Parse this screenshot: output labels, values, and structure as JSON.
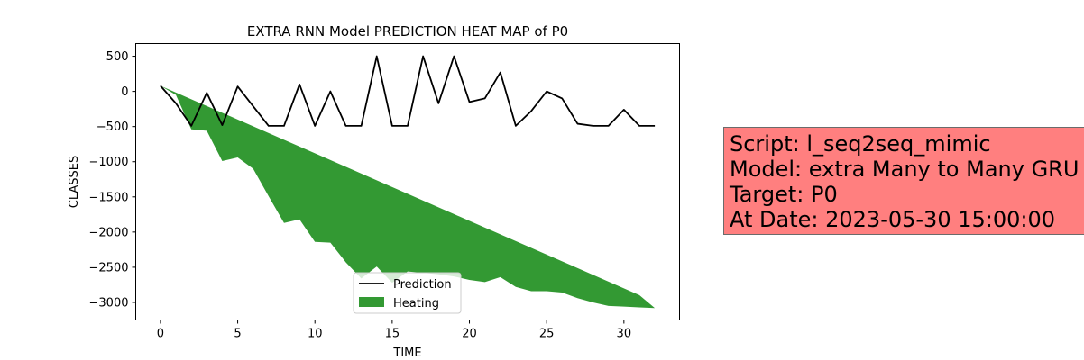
{
  "chart_data": {
    "type": "line",
    "title": "EXTRA RNN Model PREDICTION HEAT MAP of P0",
    "xlabel": "TIME",
    "ylabel": "CLASSES",
    "xlim": [
      -1.6,
      33.6
    ],
    "ylim": [
      -3250,
      680
    ],
    "xticks": [
      0,
      5,
      10,
      15,
      20,
      25,
      30
    ],
    "yticks": [
      500,
      0,
      -500,
      -1000,
      -1500,
      -2000,
      -2500,
      -3000
    ],
    "grid": false,
    "legend_position": "lower center",
    "x": [
      0,
      1,
      2,
      3,
      4,
      5,
      6,
      7,
      8,
      9,
      10,
      11,
      12,
      13,
      14,
      15,
      16,
      17,
      18,
      19,
      20,
      21,
      22,
      23,
      24,
      25,
      26,
      27,
      28,
      29,
      30,
      31,
      32
    ],
    "series": [
      {
        "name": "Prediction",
        "kind": "line",
        "color": "#000000",
        "values": [
          80,
          -170,
          -490,
          -20,
          -480,
          70,
          -210,
          -490,
          -490,
          100,
          -490,
          0,
          -490,
          -490,
          500,
          -490,
          -490,
          500,
          -170,
          500,
          -150,
          -100,
          270,
          -490,
          -280,
          0,
          -100,
          -460,
          -490,
          -490,
          -260,
          -490,
          -490
        ]
      },
      {
        "name": "Heating",
        "kind": "fill_between",
        "color": "#339933",
        "upper": [
          80,
          -16,
          -112,
          -208,
          -304,
          -400,
          -496,
          -592,
          -688,
          -784,
          -880,
          -976,
          -1072,
          -1168,
          -1264,
          -1360,
          -1456,
          -1552,
          -1648,
          -1744,
          -1840,
          -1936,
          -2032,
          -2128,
          -2224,
          -2320,
          -2416,
          -2512,
          -2608,
          -2704,
          -2800,
          -2896,
          -3080
        ],
        "lower": [
          80,
          -50,
          -540,
          -560,
          -990,
          -940,
          -1100,
          -1490,
          -1870,
          -1820,
          -2140,
          -2150,
          -2430,
          -2660,
          -2490,
          -2720,
          -2560,
          -2580,
          -2600,
          -2630,
          -2680,
          -2710,
          -2640,
          -2780,
          -2840,
          -2840,
          -2860,
          -2940,
          -3000,
          -3050,
          -3060,
          -3070,
          -3080
        ]
      }
    ]
  },
  "info_box": {
    "lines": [
      "Script: l_seq2seq_mimic",
      "Model: extra Many to Many GRU",
      "Target: P0",
      "At Date: 2023-05-30 15:00:00"
    ],
    "background": "#ff7f7f"
  }
}
